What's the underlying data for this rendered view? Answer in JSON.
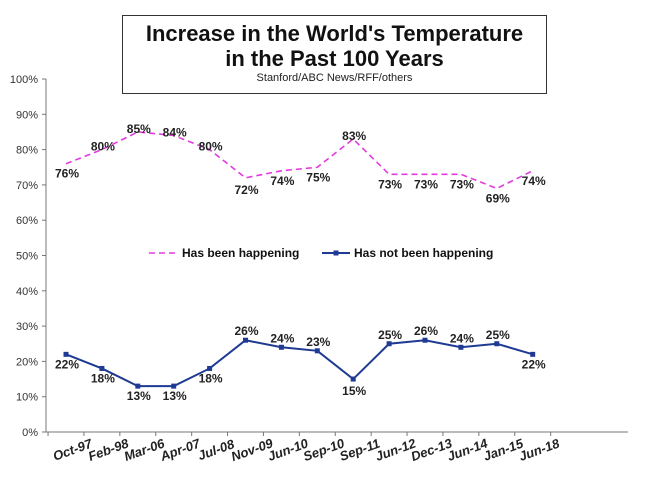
{
  "chart_data": {
    "type": "line",
    "title_lines": [
      "Increase in the World's Temperature",
      "in the Past 100 Years"
    ],
    "subtitle": "Stanford/ABC News/RFF/others",
    "categories": [
      "Oct-97",
      "Feb-98",
      "Mar-06",
      "Apr-07",
      "Jul-08",
      "Nov-09",
      "Jun-10",
      "Sep-10",
      "Sep-11",
      "Jun-12",
      "Dec-13",
      "Jun-14",
      "Jan-15",
      "Jun-18"
    ],
    "series": [
      {
        "name": "Has been happening",
        "color": "#e23ae0",
        "dash": true,
        "values": [
          76,
          80,
          85,
          84,
          80,
          72,
          74,
          75,
          83,
          73,
          73,
          73,
          69,
          74
        ],
        "labels": [
          "76%",
          "80%",
          "85%",
          "84%",
          "80%",
          "72%",
          "74%",
          "75%",
          "83%",
          "73%",
          "73%",
          "73%",
          "69%",
          "74%"
        ]
      },
      {
        "name": "Has not been happening",
        "color": "#1f3a93",
        "dash": false,
        "values": [
          22,
          18,
          13,
          13,
          18,
          26,
          24,
          23,
          15,
          25,
          26,
          24,
          25,
          22
        ],
        "labels": [
          "22%",
          "18%",
          "13%",
          "13%",
          "18%",
          "26%",
          "24%",
          "23%",
          "15%",
          "25%",
          "26%",
          "24%",
          "25%",
          "22%"
        ]
      }
    ],
    "y_ticks": [
      "0%",
      "10%",
      "20%",
      "30%",
      "40%",
      "50%",
      "60%",
      "70%",
      "80%",
      "90%",
      "100%"
    ],
    "ylim": [
      0,
      100
    ],
    "grid": false,
    "legend_position": "middle"
  }
}
